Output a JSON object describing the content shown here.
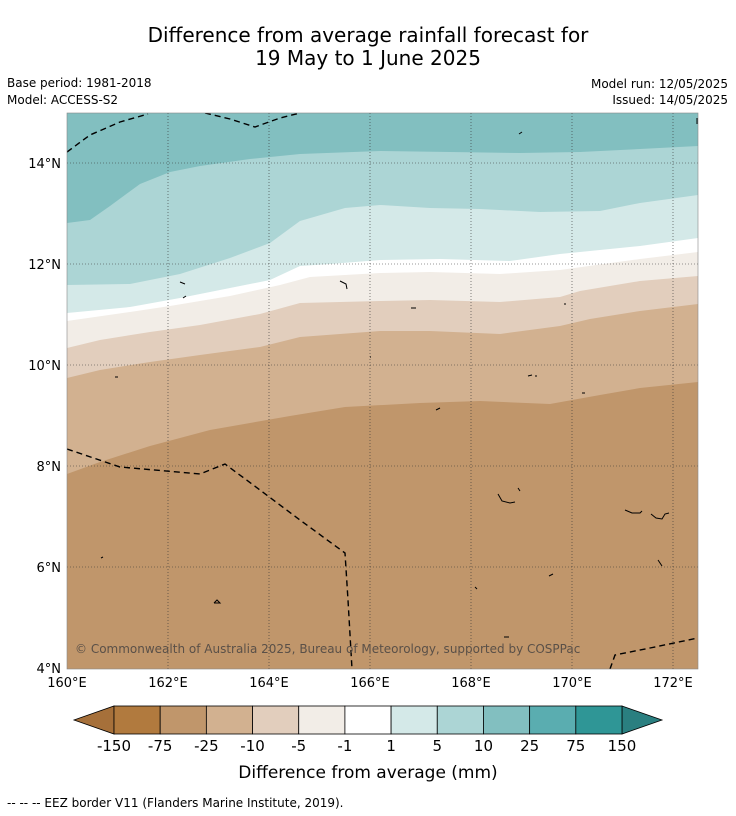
{
  "title_line1": "Difference from average rainfall forecast for",
  "title_line2": "19 May to 1 June 2025",
  "base_period": "Base period: 1981-2018",
  "model": "Model: ACCESS-S2",
  "model_run": "Model run: 12/05/2025",
  "issued": "Issued: 14/05/2025",
  "copyright": "© Commonwealth of Australia 2025, Bureau of Meteorology, supported by COSPPac",
  "lat_ticks": [
    "14°N",
    "12°N",
    "10°N",
    "8°N",
    "6°N",
    "4°N"
  ],
  "lon_ticks": [
    "160°E",
    "162°E",
    "164°E",
    "166°E",
    "168°E",
    "170°E",
    "172°E"
  ],
  "colorbar": {
    "title": "Difference from average (mm)",
    "labels": [
      "-150",
      "-75",
      "-25",
      "-10",
      "-5",
      "-1",
      "1",
      "5",
      "10",
      "25",
      "75",
      "150"
    ],
    "colors": [
      "#a6703a",
      "#b17a3e",
      "#c0966b",
      "#d2b190",
      "#e2cebd",
      "#f2ede7",
      "#ffffff",
      "#d4e9e8",
      "#acd5d5",
      "#82bfc0",
      "#5aadb0",
      "#2f9696",
      "#2a7f80"
    ]
  },
  "footer": "--  --  -- EEZ border V11 (Flanders Marine Institute, 2019)."
}
